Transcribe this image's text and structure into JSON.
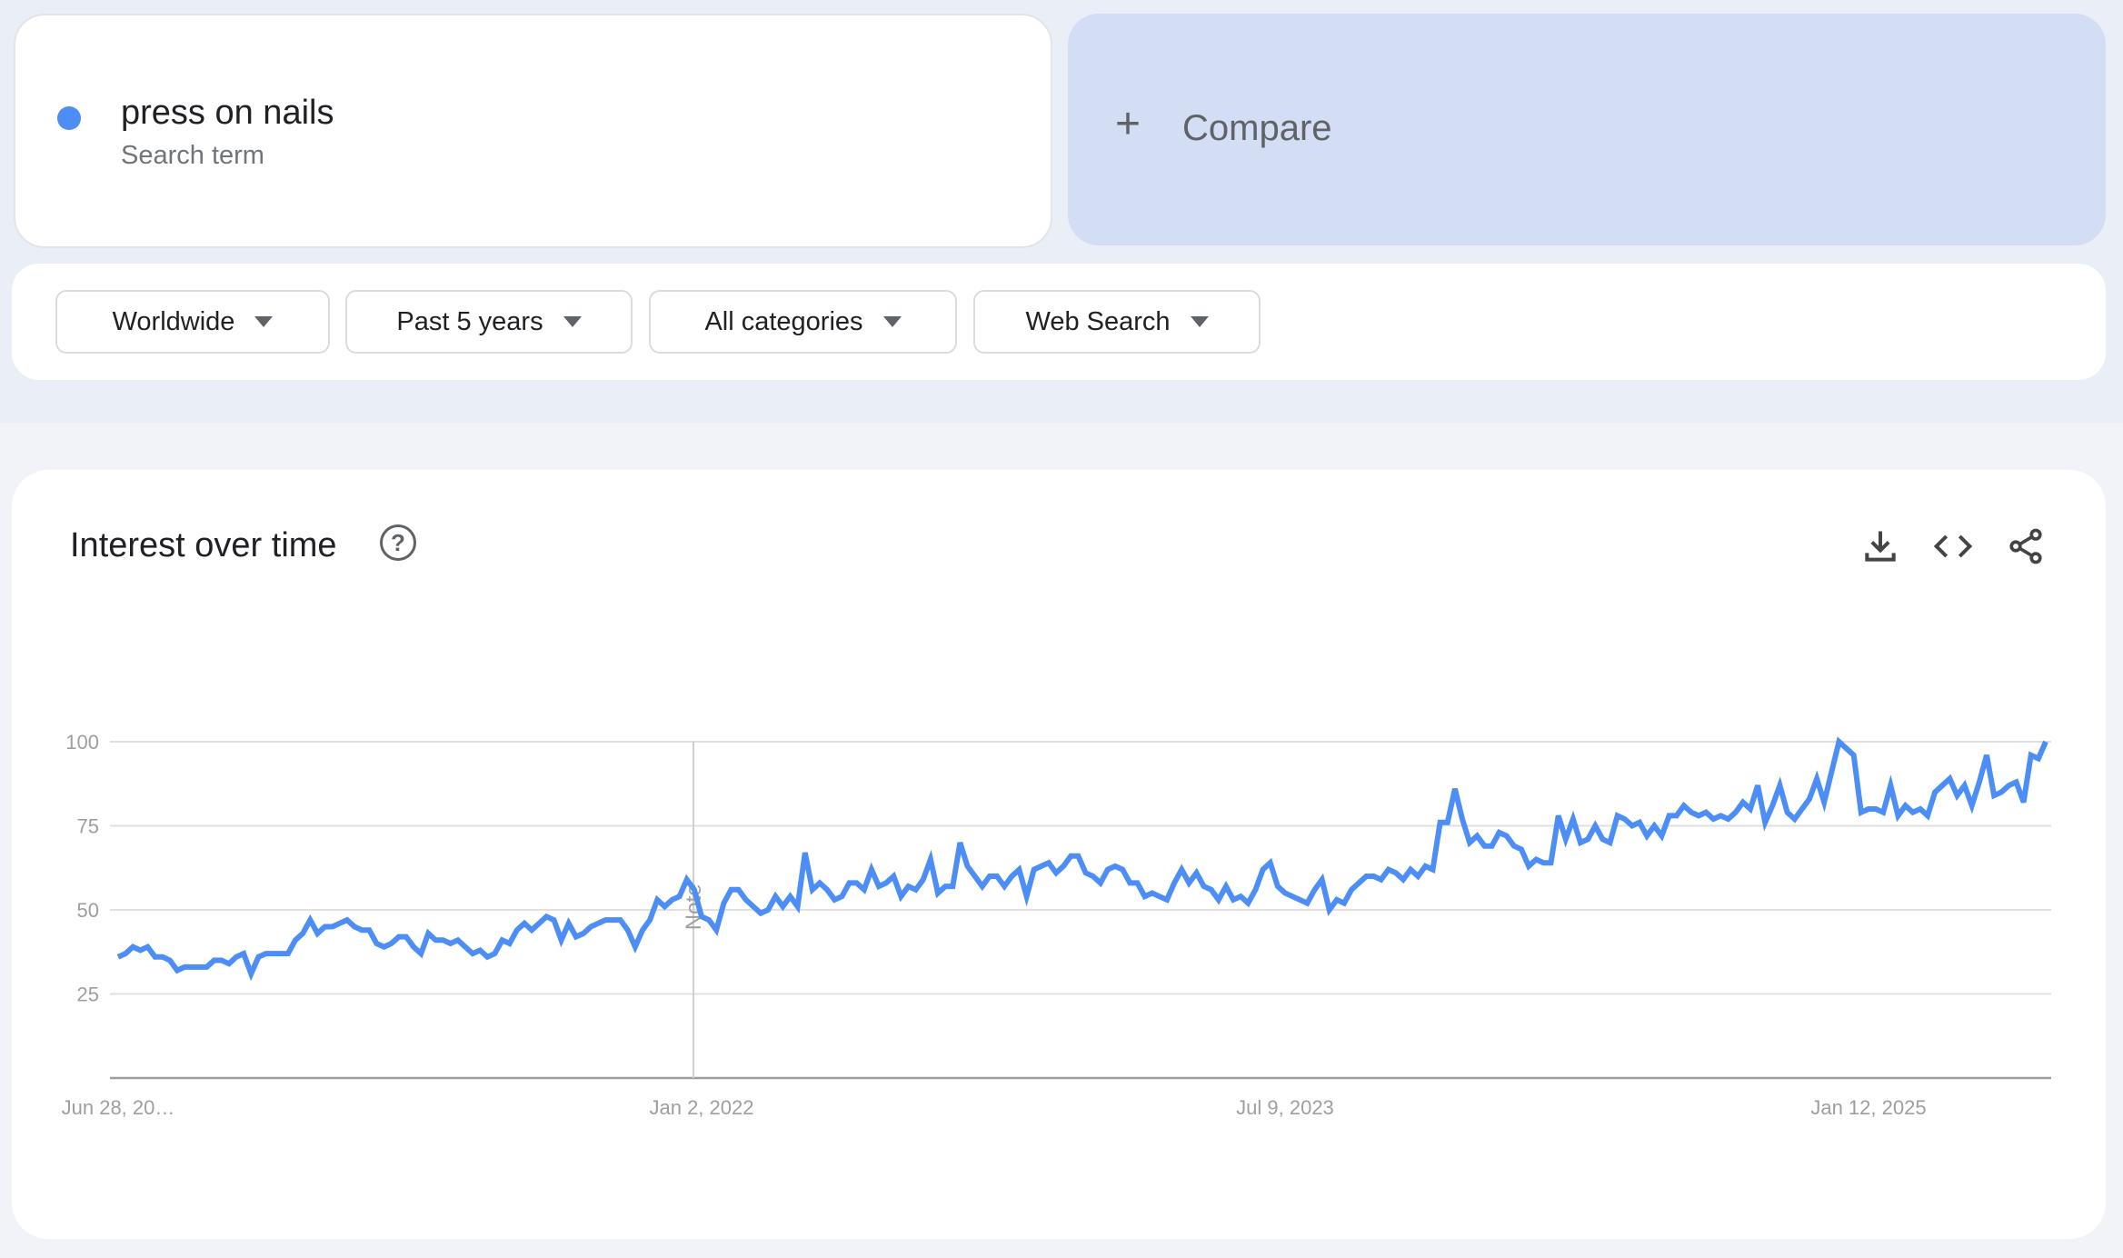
{
  "term": {
    "name": "press on nails",
    "type": "Search term",
    "color": "#4c8df6"
  },
  "compare": {
    "icon": "plus-icon",
    "label": "Compare"
  },
  "filters": [
    {
      "label": "Worldwide"
    },
    {
      "label": "Past 5 years"
    },
    {
      "label": "All categories"
    },
    {
      "label": "Web Search"
    }
  ],
  "panel": {
    "title": "Interest over time",
    "help_icon": "help-circle-icon",
    "help_glyph": "?",
    "actions": [
      "download-icon",
      "embed-code-icon",
      "share-icon"
    ]
  },
  "chart_data": {
    "type": "line",
    "ylim": [
      0,
      100
    ],
    "y_ticks": [
      "100",
      "75",
      "50",
      "25"
    ],
    "x_ticks": [
      "Jun 28, 20…",
      "Jan 2, 2022",
      "Jul 9, 2023",
      "Jan 12, 2025"
    ],
    "annotation": "Note",
    "grid": true,
    "series_color": "#4c8df6",
    "series": [
      {
        "values": [
          36,
          37,
          39,
          38,
          39,
          36,
          36,
          35,
          32,
          33,
          33,
          33,
          33,
          35,
          35,
          34,
          36,
          37,
          31,
          36,
          37,
          37,
          37,
          37,
          41,
          43,
          47,
          43,
          45,
          45,
          46,
          47,
          45,
          44,
          44,
          40,
          39,
          40,
          42,
          42,
          39,
          37,
          43,
          41,
          41,
          40,
          41,
          39,
          37,
          38,
          36,
          37,
          41,
          40,
          44,
          46,
          44,
          46,
          48,
          47,
          41,
          46,
          42,
          43,
          45,
          46,
          47,
          47,
          47,
          44,
          39,
          44,
          47,
          53,
          51,
          53,
          54,
          59,
          56,
          48,
          47,
          44,
          52,
          56,
          56,
          53,
          51,
          49,
          50,
          54,
          51,
          54,
          51,
          67,
          56,
          58,
          56,
          53,
          54,
          58,
          58,
          56,
          62,
          57,
          58,
          60,
          54,
          57,
          56,
          59,
          65,
          55,
          57,
          57,
          70,
          63,
          60,
          57,
          60,
          60,
          57,
          60,
          62,
          54,
          62,
          63,
          64,
          61,
          63,
          66,
          66,
          61,
          60,
          58,
          62,
          63,
          62,
          58,
          58,
          54,
          55,
          54,
          53,
          58,
          62,
          58,
          61,
          57,
          56,
          53,
          57,
          53,
          54,
          52,
          56,
          62,
          64,
          57,
          55,
          54,
          53,
          52,
          56,
          59,
          50,
          53,
          52,
          56,
          58,
          60,
          60,
          59,
          62,
          61,
          59,
          62,
          60,
          63,
          62,
          76,
          76,
          86,
          77,
          70,
          72,
          69,
          69,
          73,
          72,
          69,
          68,
          63,
          65,
          64,
          64,
          78,
          71,
          77,
          70,
          71,
          75,
          71,
          70,
          78,
          77,
          75,
          76,
          72,
          75,
          72,
          78,
          78,
          81,
          79,
          78,
          79,
          77,
          78,
          77,
          79,
          82,
          80,
          87,
          76,
          81,
          87,
          79,
          77,
          80,
          83,
          89,
          82,
          91,
          100,
          98,
          96,
          79,
          80,
          80,
          79,
          87,
          78,
          81,
          79,
          80,
          78,
          85,
          87,
          89,
          84,
          87,
          81,
          88,
          96,
          84,
          85,
          87,
          88,
          82,
          96,
          95,
          100
        ]
      }
    ]
  }
}
